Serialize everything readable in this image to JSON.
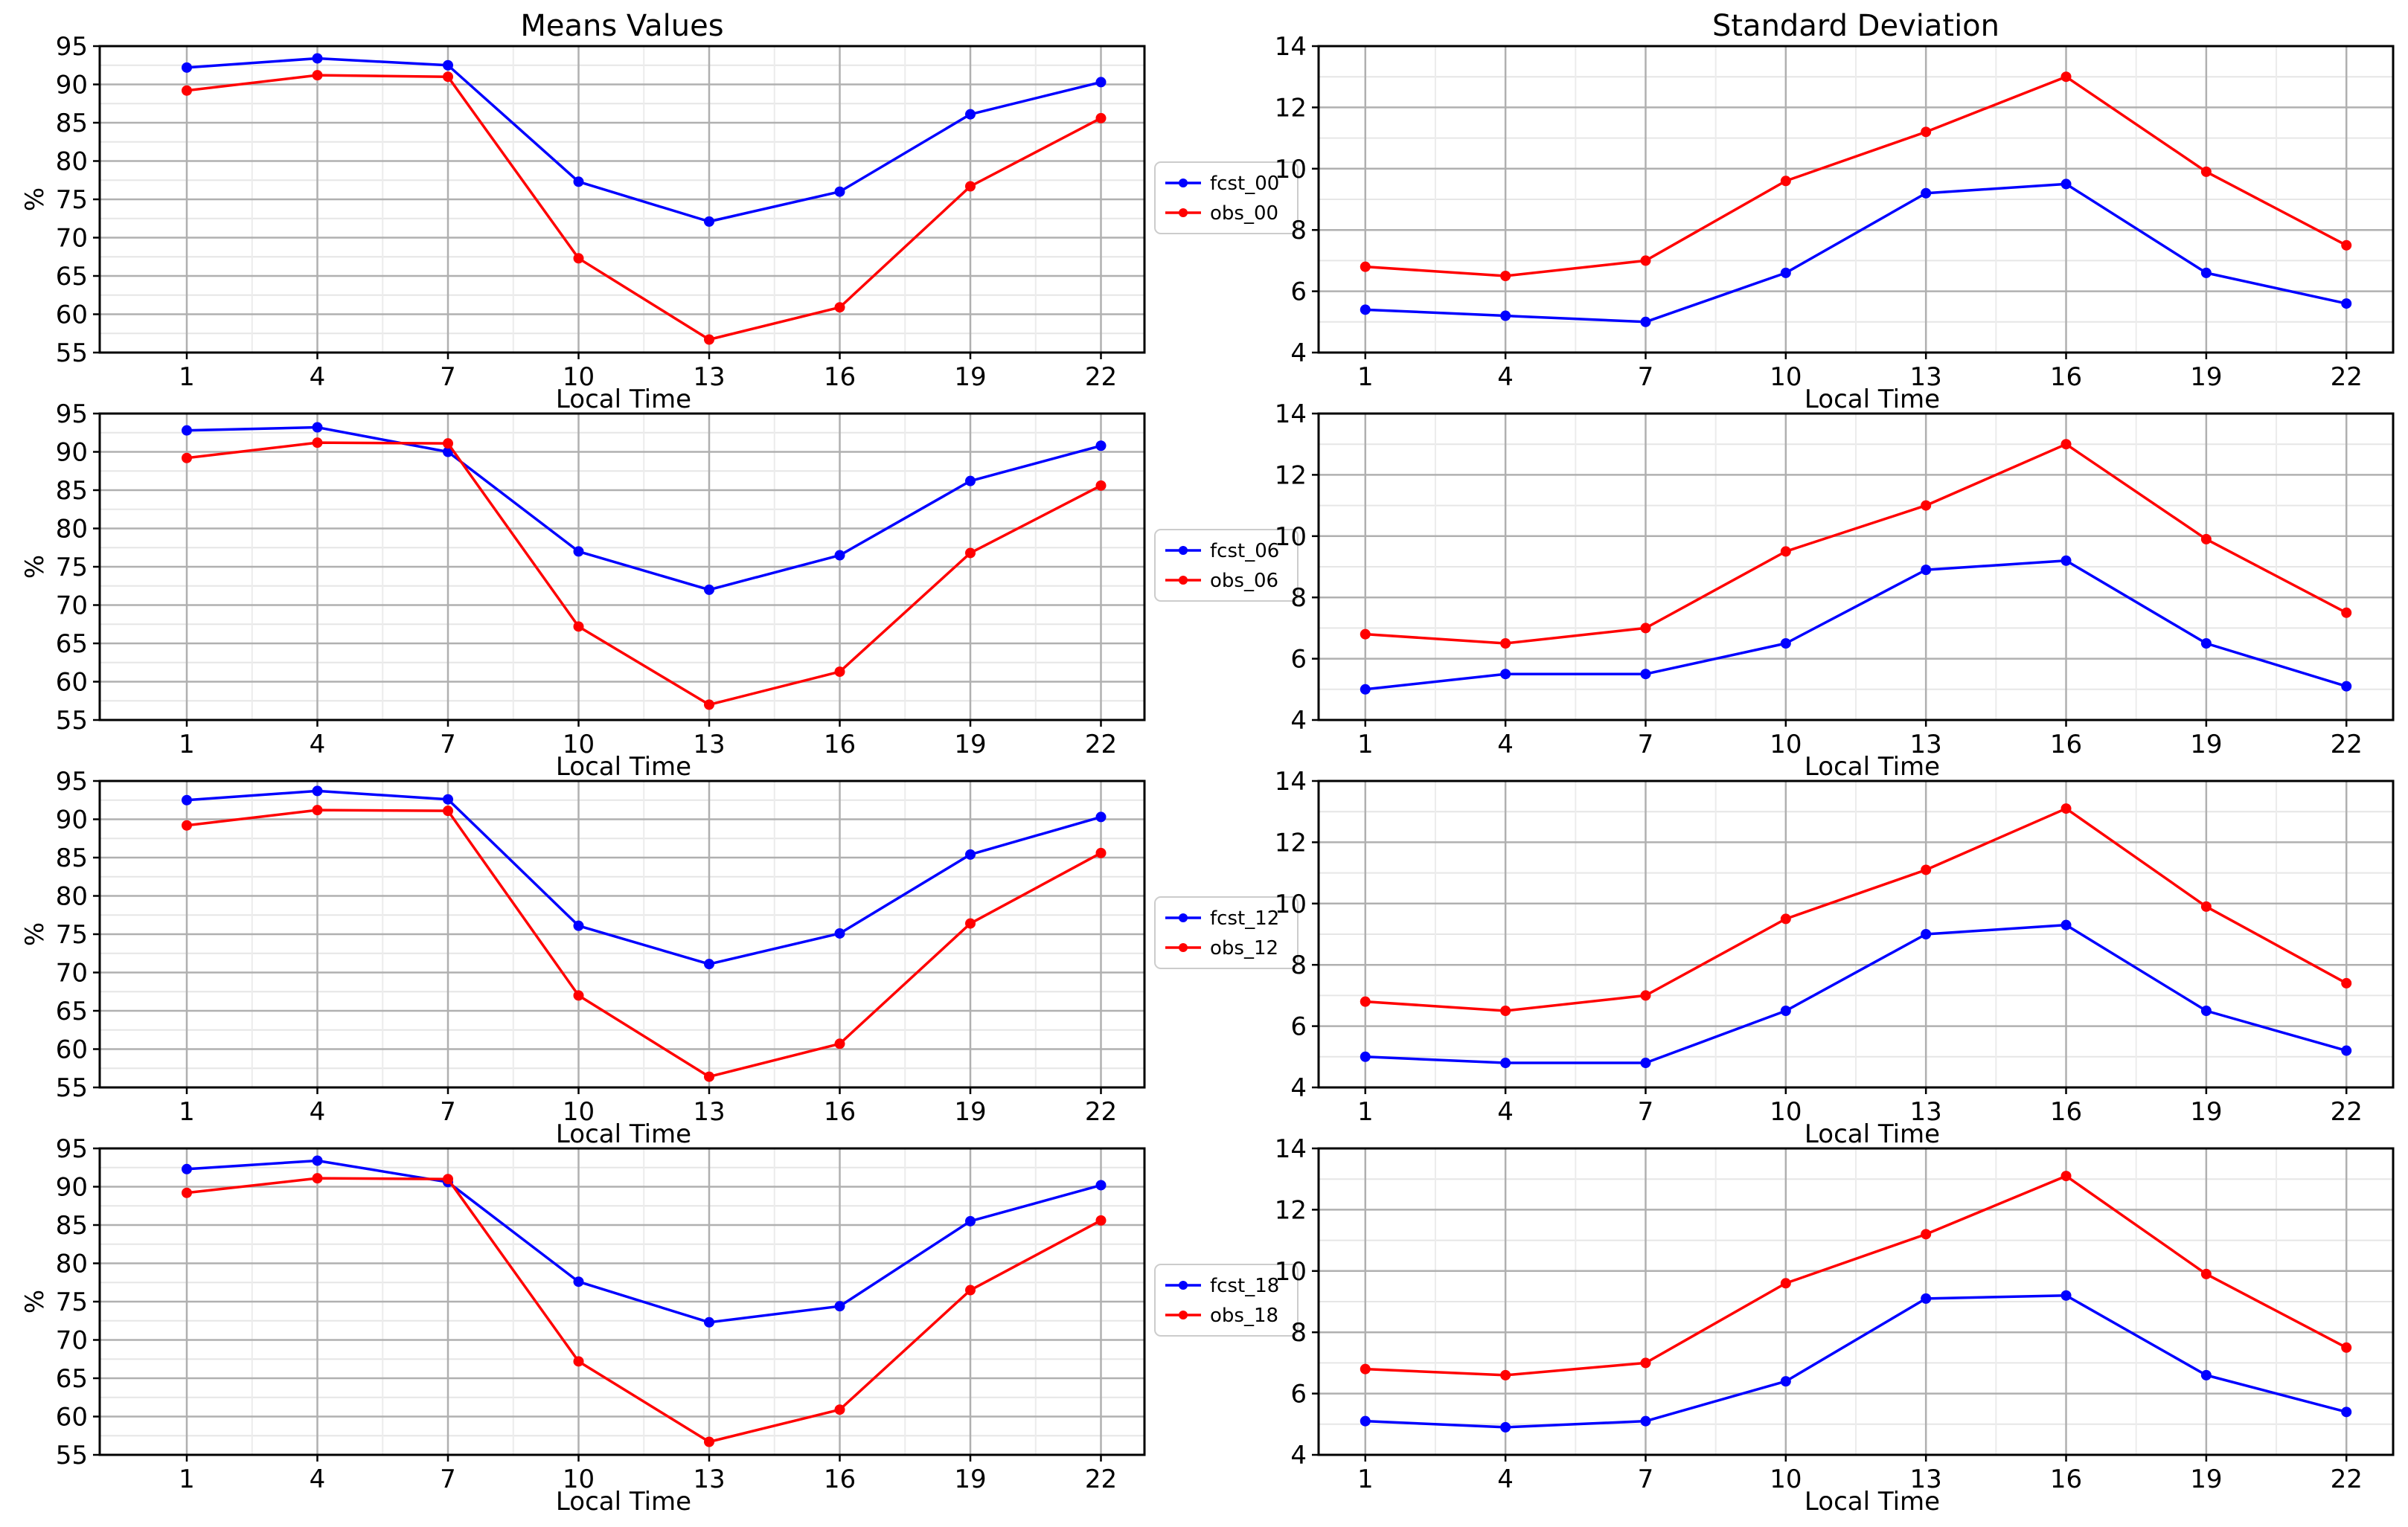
{
  "chart_data": [
    {
      "type": "line",
      "id": "mean-00",
      "title": "Means Values",
      "xlabel": "Local Time",
      "ylabel": "%",
      "x": [
        1,
        4,
        7,
        10,
        13,
        16,
        19,
        22
      ],
      "xticks": [
        "1",
        "4",
        "7",
        "10",
        "13",
        "16",
        "19",
        "22"
      ],
      "xlim": [
        -1,
        23
      ],
      "ylim": [
        55,
        95
      ],
      "yticks": [
        "55",
        "60",
        "65",
        "70",
        "75",
        "80",
        "85",
        "90",
        "95"
      ],
      "grid": true,
      "legend": "outside-right",
      "series": [
        {
          "name": "fcst_00",
          "color": "#0000ff",
          "values": [
            92.2,
            93.4,
            92.5,
            77.3,
            72.1,
            76.0,
            86.1,
            90.3
          ]
        },
        {
          "name": "obs_00",
          "color": "#ff0000",
          "values": [
            89.2,
            91.2,
            91.0,
            67.3,
            56.7,
            60.9,
            76.7,
            85.6
          ]
        }
      ]
    },
    {
      "type": "line",
      "id": "std-00",
      "title": "Standard Deviation",
      "xlabel": "Local Time",
      "ylabel": "",
      "x": [
        1,
        4,
        7,
        10,
        13,
        16,
        19,
        22
      ],
      "xticks": [
        "1",
        "4",
        "7",
        "10",
        "13",
        "16",
        "19",
        "22"
      ],
      "xlim": [
        0,
        23
      ],
      "ylim": [
        4,
        14
      ],
      "yticks": [
        "4",
        "6",
        "8",
        "10",
        "12",
        "14"
      ],
      "grid": true,
      "series": [
        {
          "name": "fcst_00",
          "color": "#0000ff",
          "values": [
            5.4,
            5.2,
            5.0,
            6.6,
            9.2,
            9.5,
            6.6,
            5.6
          ]
        },
        {
          "name": "obs_00",
          "color": "#ff0000",
          "values": [
            6.8,
            6.5,
            7.0,
            9.6,
            11.2,
            13.0,
            9.9,
            7.5
          ]
        }
      ]
    },
    {
      "type": "line",
      "id": "mean-06",
      "title": "",
      "xlabel": "Local Time",
      "ylabel": "%",
      "x": [
        1,
        4,
        7,
        10,
        13,
        16,
        19,
        22
      ],
      "xticks": [
        "1",
        "4",
        "7",
        "10",
        "13",
        "16",
        "19",
        "22"
      ],
      "xlim": [
        -1,
        23
      ],
      "ylim": [
        55,
        95
      ],
      "yticks": [
        "55",
        "60",
        "65",
        "70",
        "75",
        "80",
        "85",
        "90",
        "95"
      ],
      "grid": true,
      "legend": "outside-right",
      "series": [
        {
          "name": "fcst_06",
          "color": "#0000ff",
          "values": [
            92.8,
            93.2,
            90.0,
            77.0,
            72.0,
            76.5,
            86.2,
            90.8
          ]
        },
        {
          "name": "obs_06",
          "color": "#ff0000",
          "values": [
            89.2,
            91.2,
            91.1,
            67.2,
            57.0,
            61.3,
            76.8,
            85.6
          ]
        }
      ]
    },
    {
      "type": "line",
      "id": "std-06",
      "title": "",
      "xlabel": "Local Time",
      "ylabel": "",
      "x": [
        1,
        4,
        7,
        10,
        13,
        16,
        19,
        22
      ],
      "xticks": [
        "1",
        "4",
        "7",
        "10",
        "13",
        "16",
        "19",
        "22"
      ],
      "xlim": [
        0,
        23
      ],
      "ylim": [
        4,
        14
      ],
      "yticks": [
        "4",
        "6",
        "8",
        "10",
        "12",
        "14"
      ],
      "grid": true,
      "series": [
        {
          "name": "fcst_06",
          "color": "#0000ff",
          "values": [
            5.0,
            5.5,
            5.5,
            6.5,
            8.9,
            9.2,
            6.5,
            5.1
          ]
        },
        {
          "name": "obs_06",
          "color": "#ff0000",
          "values": [
            6.8,
            6.5,
            7.0,
            9.5,
            11.0,
            13.0,
            9.9,
            7.5
          ]
        }
      ]
    },
    {
      "type": "line",
      "id": "mean-12",
      "title": "",
      "xlabel": "Local Time",
      "ylabel": "%",
      "x": [
        1,
        4,
        7,
        10,
        13,
        16,
        19,
        22
      ],
      "xticks": [
        "1",
        "4",
        "7",
        "10",
        "13",
        "16",
        "19",
        "22"
      ],
      "xlim": [
        -1,
        23
      ],
      "ylim": [
        55,
        95
      ],
      "yticks": [
        "55",
        "60",
        "65",
        "70",
        "75",
        "80",
        "85",
        "90",
        "95"
      ],
      "grid": true,
      "legend": "outside-right",
      "series": [
        {
          "name": "fcst_12",
          "color": "#0000ff",
          "values": [
            92.5,
            93.7,
            92.6,
            76.1,
            71.1,
            75.1,
            85.4,
            90.3
          ]
        },
        {
          "name": "obs_12",
          "color": "#ff0000",
          "values": [
            89.2,
            91.2,
            91.1,
            67.0,
            56.4,
            60.7,
            76.4,
            85.6
          ]
        }
      ]
    },
    {
      "type": "line",
      "id": "std-12",
      "title": "",
      "xlabel": "Local Time",
      "ylabel": "",
      "x": [
        1,
        4,
        7,
        10,
        13,
        16,
        19,
        22
      ],
      "xticks": [
        "1",
        "4",
        "7",
        "10",
        "13",
        "16",
        "19",
        "22"
      ],
      "xlim": [
        0,
        23
      ],
      "ylim": [
        4,
        14
      ],
      "yticks": [
        "4",
        "6",
        "8",
        "10",
        "12",
        "14"
      ],
      "grid": true,
      "series": [
        {
          "name": "fcst_12",
          "color": "#0000ff",
          "values": [
            5.0,
            4.8,
            4.8,
            6.5,
            9.0,
            9.3,
            6.5,
            5.2
          ]
        },
        {
          "name": "obs_12",
          "color": "#ff0000",
          "values": [
            6.8,
            6.5,
            7.0,
            9.5,
            11.1,
            13.1,
            9.9,
            7.4
          ]
        }
      ]
    },
    {
      "type": "line",
      "id": "mean-18",
      "title": "",
      "xlabel": "Local Time",
      "ylabel": "%",
      "x": [
        1,
        4,
        7,
        10,
        13,
        16,
        19,
        22
      ],
      "xticks": [
        "1",
        "4",
        "7",
        "10",
        "13",
        "16",
        "19",
        "22"
      ],
      "xlim": [
        -1,
        23
      ],
      "ylim": [
        55,
        95
      ],
      "yticks": [
        "55",
        "60",
        "65",
        "70",
        "75",
        "80",
        "85",
        "90",
        "95"
      ],
      "grid": true,
      "legend": "outside-right",
      "series": [
        {
          "name": "fcst_18",
          "color": "#0000ff",
          "values": [
            92.3,
            93.4,
            90.6,
            77.6,
            72.3,
            74.4,
            85.5,
            90.2
          ]
        },
        {
          "name": "obs_18",
          "color": "#ff0000",
          "values": [
            89.2,
            91.1,
            91.0,
            67.2,
            56.7,
            60.9,
            76.5,
            85.6
          ]
        }
      ]
    },
    {
      "type": "line",
      "id": "std-18",
      "title": "",
      "xlabel": "Local Time",
      "ylabel": "",
      "x": [
        1,
        4,
        7,
        10,
        13,
        16,
        19,
        22
      ],
      "xticks": [
        "1",
        "4",
        "7",
        "10",
        "13",
        "16",
        "19",
        "22"
      ],
      "xlim": [
        0,
        23
      ],
      "ylim": [
        4,
        14
      ],
      "yticks": [
        "4",
        "6",
        "8",
        "10",
        "12",
        "14"
      ],
      "grid": true,
      "series": [
        {
          "name": "fcst_18",
          "color": "#0000ff",
          "values": [
            5.1,
            4.9,
            5.1,
            6.4,
            9.1,
            9.2,
            6.6,
            5.4
          ]
        },
        {
          "name": "obs_18",
          "color": "#ff0000",
          "values": [
            6.8,
            6.6,
            7.0,
            9.6,
            11.2,
            13.1,
            9.9,
            7.5
          ]
        }
      ]
    }
  ]
}
